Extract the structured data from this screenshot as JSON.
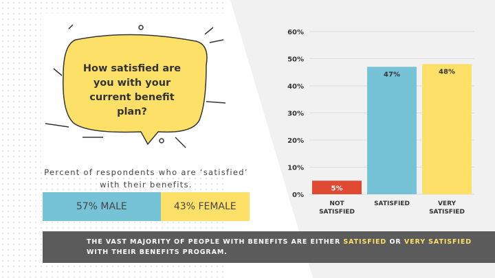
{
  "chart_data": {
    "type": "bar",
    "categories": [
      "NOT SATISFIED",
      "SATISFIED",
      "VERY SATISFIED"
    ],
    "values": [
      5,
      47,
      48
    ],
    "value_labels": [
      "5%",
      "47%",
      "48%"
    ],
    "colors": [
      "#e04a33",
      "#76c3d8",
      "#fde068"
    ],
    "ylim": [
      0,
      60
    ],
    "yticks": [
      {
        "value": 0,
        "label": "0%"
      },
      {
        "value": 10,
        "label": "10%"
      },
      {
        "value": 20,
        "label": "20%"
      },
      {
        "value": 30,
        "label": "30%"
      },
      {
        "value": 40,
        "label": "40%"
      },
      {
        "value": 50,
        "label": "50%"
      },
      {
        "value": 60,
        "label": "60%"
      }
    ],
    "grid": true
  },
  "question": "How satisfied are you with your current benefit plan?",
  "subtitle": "Percent of respondents who are ‘satisfied’ with their benefits.",
  "gender_split": [
    {
      "value": 57,
      "label": "57% MALE",
      "color": "#76c3d8"
    },
    {
      "value": 43,
      "label": "43% FEMALE",
      "color": "#fde068"
    }
  ],
  "footer": {
    "parts": [
      "THE VAST MAJORITY OF PEOPLE WITH BENEFITS ARE EITHER",
      "SATISFIED",
      "OR",
      "VERY SATISFIED",
      "WITH THEIR BENEFITS PROGRAM."
    ]
  }
}
